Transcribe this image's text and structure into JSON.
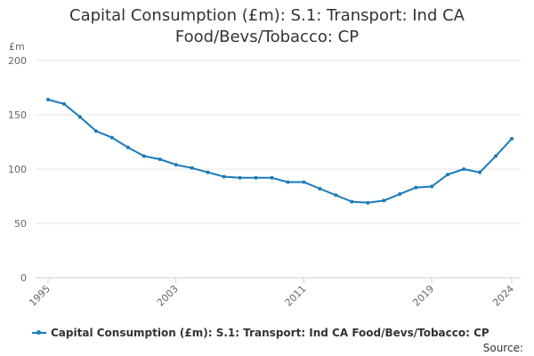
{
  "chart_data": {
    "type": "line",
    "title_line1": "Capital Consumption (£m): S.1: Transport: Ind CA",
    "title_line2": "Food/Bevs/Tobacco: CP",
    "ylabel": "£m",
    "ylim": [
      0,
      200
    ],
    "yticks": [
      0,
      50,
      100,
      150,
      200
    ],
    "xlim": [
      1995,
      2024
    ],
    "xticks": [
      1995,
      2003,
      2011,
      2019,
      2024
    ],
    "series": [
      {
        "name": "Capital Consumption (£m): S.1: Transport: Ind CA Food/Bevs/Tobacco: CP",
        "color": "#1a7ab8",
        "x": [
          1995,
          1996,
          1997,
          1998,
          1999,
          2000,
          2001,
          2002,
          2003,
          2004,
          2005,
          2006,
          2007,
          2008,
          2009,
          2010,
          2011,
          2012,
          2013,
          2014,
          2015,
          2016,
          2017,
          2018,
          2019,
          2020,
          2021,
          2022,
          2023,
          2024
        ],
        "values": [
          164,
          160,
          148,
          135,
          129,
          120,
          112,
          109,
          104,
          101,
          97,
          93,
          92,
          92,
          92,
          88,
          88,
          82,
          76,
          70,
          69,
          71,
          77,
          83,
          84,
          95,
          100,
          97,
          112,
          128
        ]
      }
    ],
    "legend_label": "Capital Consumption (£m): S.1: Transport: Ind CA Food/Bevs/Tobacco: CP",
    "source_label": "Source:"
  }
}
